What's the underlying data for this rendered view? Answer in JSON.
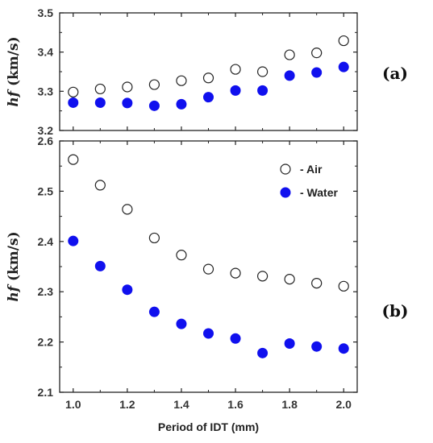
{
  "chart_data": [
    {
      "type": "scatter",
      "panel_label": "(a)",
      "ylabel": "hf (km/s)",
      "xlim": [
        0.95,
        2.05
      ],
      "ylim": [
        3.2,
        3.5
      ],
      "yticks": [
        "3.2",
        "3.3",
        "3.4",
        "3.5"
      ],
      "ytick_values": [
        3.2,
        3.3,
        3.4,
        3.5
      ],
      "x": [
        1.0,
        1.1,
        1.2,
        1.3,
        1.4,
        1.5,
        1.6,
        1.7,
        1.8,
        1.9,
        2.0
      ],
      "series": [
        {
          "name": "Air",
          "style": "open",
          "color": "#222222",
          "values": [
            3.298,
            3.306,
            3.311,
            3.317,
            3.327,
            3.334,
            3.356,
            3.35,
            3.393,
            3.398,
            3.429
          ]
        },
        {
          "name": "Water",
          "style": "filled",
          "color": "#1010ee",
          "values": [
            3.271,
            3.271,
            3.27,
            3.263,
            3.267,
            3.285,
            3.302,
            3.302,
            3.34,
            3.348,
            3.362
          ]
        }
      ]
    },
    {
      "type": "scatter",
      "panel_label": "(b)",
      "ylabel": "hf (km/s)",
      "xlabel": "Period of IDT (mm)",
      "xlim": [
        0.95,
        2.05
      ],
      "ylim": [
        2.1,
        2.6
      ],
      "yticks": [
        "2.1",
        "2.2",
        "2.3",
        "2.4",
        "2.5",
        "2.6"
      ],
      "ytick_values": [
        2.1,
        2.2,
        2.3,
        2.4,
        2.5,
        2.6
      ],
      "xticks": [
        "1.0",
        "1.2",
        "1.4",
        "1.6",
        "1.8",
        "2.0"
      ],
      "xtick_values": [
        1.0,
        1.2,
        1.4,
        1.6,
        1.8,
        2.0
      ],
      "x": [
        1.0,
        1.1,
        1.2,
        1.3,
        1.4,
        1.5,
        1.6,
        1.7,
        1.8,
        1.9,
        2.0
      ],
      "legend": {
        "position": "top-right",
        "entries": [
          "- Air",
          "- Water"
        ]
      },
      "series": [
        {
          "name": "Air",
          "style": "open",
          "color": "#222222",
          "values": [
            2.563,
            2.512,
            2.464,
            2.407,
            2.373,
            2.345,
            2.337,
            2.331,
            2.325,
            2.317,
            2.311
          ]
        },
        {
          "name": "Water",
          "style": "filled",
          "color": "#1010ee",
          "values": [
            2.401,
            2.351,
            2.304,
            2.26,
            2.236,
            2.217,
            2.207,
            2.178,
            2.197,
            2.191,
            2.187
          ]
        }
      ]
    }
  ]
}
